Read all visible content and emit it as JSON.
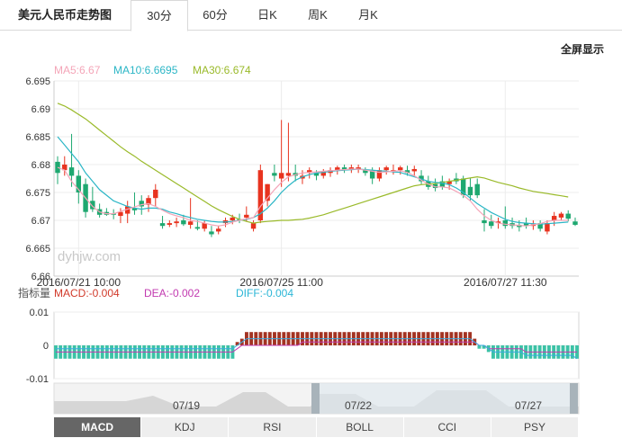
{
  "tabs": {
    "title": "美元人民币走势图",
    "items": [
      {
        "label": "30分",
        "active": true
      },
      {
        "label": "60分",
        "active": false
      },
      {
        "label": "日K",
        "active": false
      },
      {
        "label": "周K",
        "active": false
      },
      {
        "label": "月K",
        "active": false
      }
    ]
  },
  "fullscreen_label": "全屏显示",
  "watermark": "dyhjw.com",
  "ma_legend": [
    {
      "text": "MA5:6.67",
      "color": "#f4a5b8"
    },
    {
      "text": "MA10:6.6695",
      "color": "#2bb6c6"
    },
    {
      "text": "MA30:6.674",
      "color": "#9aba2a"
    }
  ],
  "macd_legend": {
    "prefix": "指标量",
    "items": [
      {
        "text": "MACD:-0.004",
        "color": "#d13a2a"
      },
      {
        "text": "DEA:-0.002",
        "color": "#c23ab0"
      },
      {
        "text": "DIFF:-0.004",
        "color": "#2bb6d6"
      }
    ]
  },
  "navigator_labels": [
    "07/19",
    "07/22",
    "07/27"
  ],
  "indicator_tabs": [
    {
      "label": "MACD",
      "active": true
    },
    {
      "label": "KDJ",
      "active": false
    },
    {
      "label": "RSI",
      "active": false
    },
    {
      "label": "BOLL",
      "active": false
    },
    {
      "label": "CCI",
      "active": false
    },
    {
      "label": "PSY",
      "active": false
    }
  ],
  "colors": {
    "up": "#e8331f",
    "down": "#1ea870",
    "macd_pos": "#a33322",
    "macd_neg": "#3cc2a6",
    "dea": "#c23ab0",
    "diff": "#3aa9e0"
  },
  "chart_data": [
    {
      "type": "candlestick",
      "title": "美元人民币走势图",
      "interval": "30分",
      "ylim": [
        6.66,
        6.695
      ],
      "yticks": [
        "6.695",
        "6.69",
        "6.685",
        "6.68",
        "6.675",
        "6.67",
        "6.665",
        "6.66"
      ],
      "xticks": [
        "2016/07/21 10:00",
        "2016/07/25 11:00",
        "2016/07/27 11:30"
      ],
      "grid": true,
      "legend_position": "top-left",
      "candles": [
        [
          6.6805,
          6.6815,
          6.6765,
          6.6785
        ],
        [
          6.679,
          6.6815,
          6.678,
          6.68
        ],
        [
          6.6795,
          6.6855,
          6.676,
          6.678
        ],
        [
          6.678,
          6.679,
          6.673,
          6.675
        ],
        [
          6.6765,
          6.6775,
          6.6705,
          6.6715
        ],
        [
          6.6735,
          6.676,
          6.6715,
          6.672
        ],
        [
          6.672,
          6.673,
          6.6705,
          6.671
        ],
        [
          6.6715,
          6.6722,
          6.6708,
          6.671
        ],
        [
          6.6712,
          6.672,
          6.6702,
          6.671
        ],
        [
          6.6708,
          6.6722,
          6.6695,
          6.6715
        ],
        [
          6.6712,
          6.6735,
          6.6695,
          6.6725
        ],
        [
          6.6722,
          6.675,
          6.671,
          6.6718
        ],
        [
          6.6735,
          6.6745,
          6.671,
          6.6725
        ],
        [
          6.6728,
          6.6745,
          6.6715,
          6.674
        ],
        [
          6.674,
          6.6765,
          6.6725,
          6.6755
        ],
        [
          6.6695,
          6.6708,
          6.6685,
          6.669
        ],
        [
          6.6692,
          6.67,
          6.6688,
          6.6695
        ],
        [
          6.6695,
          6.6705,
          6.6688,
          6.6698
        ],
        [
          6.67,
          6.671,
          6.669,
          6.6693
        ],
        [
          6.6692,
          6.674,
          6.6685,
          6.6698
        ],
        [
          6.6688,
          6.67,
          6.6682,
          6.6685
        ],
        [
          6.6685,
          6.67,
          6.668,
          6.6695
        ],
        [
          6.668,
          6.669,
          6.667,
          6.6675
        ],
        [
          6.668,
          6.669,
          6.6675,
          6.6685
        ],
        [
          6.6695,
          6.6705,
          6.6688,
          6.67
        ],
        [
          6.67,
          6.671,
          6.6693,
          6.6705
        ],
        [
          6.6702,
          6.6712,
          6.6695,
          6.67
        ],
        [
          6.6705,
          6.6725,
          6.6698,
          6.671
        ],
        [
          6.6685,
          6.67,
          6.668,
          6.6695
        ],
        [
          6.67,
          6.68,
          6.6695,
          6.679
        ],
        [
          6.6735,
          6.6765,
          6.6725,
          6.6765
        ],
        [
          6.6785,
          6.68,
          6.677,
          6.678
        ],
        [
          6.6775,
          6.688,
          6.676,
          6.6785
        ],
        [
          6.678,
          6.6875,
          6.677,
          6.6785
        ],
        [
          6.6785,
          6.68,
          6.677,
          6.678
        ],
        [
          6.6775,
          6.679,
          6.6765,
          6.678
        ],
        [
          6.6785,
          6.6795,
          6.6775,
          6.679
        ],
        [
          6.6785,
          6.679,
          6.6772,
          6.678
        ],
        [
          6.678,
          6.6792,
          6.6775,
          6.6788
        ],
        [
          6.6785,
          6.6795,
          6.6778,
          6.679
        ],
        [
          6.679,
          6.6798,
          6.6782,
          6.6795
        ],
        [
          6.6795,
          6.68,
          6.6785,
          6.679
        ],
        [
          6.6792,
          6.68,
          6.6785,
          6.6795
        ],
        [
          6.6792,
          6.68,
          6.6785,
          6.6795
        ],
        [
          6.679,
          6.6795,
          6.678,
          6.6785
        ],
        [
          6.679,
          6.6795,
          6.6765,
          6.6775
        ],
        [
          6.6775,
          6.6795,
          6.677,
          6.679
        ],
        [
          6.679,
          6.6798,
          6.6782,
          6.6795
        ],
        [
          6.679,
          6.68,
          6.6782,
          6.679
        ],
        [
          6.679,
          6.6798,
          6.6782,
          6.6795
        ],
        [
          6.679,
          6.6798,
          6.678,
          6.6785
        ],
        [
          6.6788,
          6.6798,
          6.6778,
          6.6792
        ],
        [
          6.678,
          6.679,
          6.6765,
          6.677
        ],
        [
          6.677,
          6.678,
          6.6755,
          6.676
        ],
        [
          6.6765,
          6.6775,
          6.6752,
          6.6758
        ],
        [
          6.677,
          6.678,
          6.6755,
          6.676
        ],
        [
          6.6765,
          6.6775,
          6.6755,
          6.677
        ],
        [
          6.6775,
          6.6785,
          6.6765,
          6.677
        ],
        [
          6.6775,
          6.678,
          6.674,
          6.6745
        ],
        [
          6.676,
          6.6775,
          6.6735,
          6.6745
        ],
        [
          6.6765,
          6.6775,
          6.674,
          6.6745
        ],
        [
          6.67,
          6.672,
          6.668,
          6.6695
        ],
        [
          6.6698,
          6.671,
          6.6685,
          6.669
        ],
        [
          6.6695,
          6.6705,
          6.6685,
          6.6698
        ],
        [
          6.67,
          6.6725,
          6.6685,
          6.669
        ],
        [
          6.6695,
          6.6705,
          6.6685,
          6.669
        ],
        [
          6.6692,
          6.67,
          6.668,
          6.6688
        ],
        [
          6.6695,
          6.6705,
          6.6685,
          6.669
        ],
        [
          6.669,
          6.67,
          6.6683,
          6.6693
        ],
        [
          6.6695,
          6.67,
          6.668,
          6.6685
        ],
        [
          6.668,
          6.67,
          6.6675,
          6.6695
        ],
        [
          6.67,
          6.6715,
          6.669,
          6.6708
        ],
        [
          6.6705,
          6.6715,
          6.67,
          6.6712
        ],
        [
          6.6712,
          6.6718,
          6.6698,
          6.6703
        ],
        [
          6.6698,
          6.6705,
          6.669,
          6.6692
        ]
      ],
      "ma5": [
        6.6795,
        6.679,
        6.677,
        6.6755,
        6.674,
        6.6725,
        6.6715,
        6.6712,
        6.6712,
        6.6716,
        6.672,
        6.6724,
        6.6728,
        6.673,
        6.6725,
        6.6718,
        6.6712,
        6.6708,
        6.6705,
        6.67,
        6.6698,
        6.6695,
        6.6692,
        6.669,
        6.6692,
        6.6697,
        6.67,
        6.6703,
        6.6705,
        6.6725,
        6.674,
        6.6755,
        6.6768,
        6.6778,
        6.6782,
        6.6785,
        6.6786,
        6.6787,
        6.6788,
        6.6789,
        6.679,
        6.6791,
        6.6792,
        6.6792,
        6.679,
        6.6788,
        6.6786,
        6.6787,
        6.6788,
        6.6789,
        6.6786,
        6.678,
        6.6772,
        6.6765,
        6.676,
        6.676,
        6.6758,
        6.6752,
        6.6745,
        6.6735,
        6.672,
        6.6708,
        6.67,
        6.6695,
        6.6693,
        6.6692,
        6.6691,
        6.669,
        6.6692,
        6.6694,
        6.6698,
        6.67,
        6.67,
        6.67
      ],
      "ma10": [
        6.685,
        6.6835,
        6.682,
        6.6805,
        6.6785,
        6.677,
        6.6755,
        6.6745,
        6.6735,
        6.673,
        6.6725,
        6.6722,
        6.672,
        6.6722,
        6.6722,
        6.672,
        6.6715,
        6.6712,
        6.6708,
        6.6705,
        6.6702,
        6.67,
        6.6698,
        6.6697,
        6.6697,
        6.6698,
        6.67,
        6.6702,
        6.6705,
        6.6712,
        6.6722,
        6.6735,
        6.675,
        6.6762,
        6.6772,
        6.6778,
        6.6782,
        6.6785,
        6.6786,
        6.6788,
        6.6789,
        6.679,
        6.6791,
        6.6792,
        6.6791,
        6.679,
        6.6789,
        6.6788,
        6.6787,
        6.6786,
        6.6782,
        6.6778,
        6.6774,
        6.677,
        6.6768,
        6.6767,
        6.6764,
        6.6758,
        6.675,
        6.674,
        6.673,
        6.6722,
        6.6714,
        6.6708,
        6.6702,
        6.6698,
        6.6696,
        6.6695,
        6.6694,
        6.6693,
        6.6694,
        6.6695,
        6.6696,
        6.6697
      ],
      "ma30": [
        6.691,
        6.6905,
        6.6898,
        6.689,
        6.6882,
        6.6872,
        6.6862,
        6.6852,
        6.6842,
        6.6832,
        6.6823,
        6.6815,
        6.6806,
        6.6798,
        6.679,
        6.6782,
        6.6774,
        6.6766,
        6.6758,
        6.675,
        6.6742,
        6.6734,
        6.6726,
        6.6719,
        6.6713,
        6.6707,
        6.6702,
        6.6698,
        6.6695,
        6.6697,
        6.6698,
        6.6699,
        6.67,
        6.67,
        6.6701,
        6.6702,
        6.6704,
        6.6707,
        6.671,
        6.6714,
        6.6718,
        6.6722,
        6.6726,
        6.673,
        6.6734,
        6.6738,
        6.6742,
        6.6746,
        6.675,
        6.6754,
        6.6758,
        6.6762,
        6.6764,
        6.6765,
        6.6766,
        6.6768,
        6.677,
        6.6772,
        6.6774,
        6.6776,
        6.6778,
        6.6776,
        6.6772,
        6.6768,
        6.6765,
        6.6762,
        6.6758,
        6.6755,
        6.6752,
        6.675,
        6.6748,
        6.6746,
        6.6744,
        6.6742
      ]
    },
    {
      "type": "bar",
      "title": "MACD",
      "ylim": [
        -0.01,
        0.01
      ],
      "yticks": [
        "0.01",
        "0",
        "-0.01"
      ],
      "macd": [
        -0.004,
        -0.004,
        -0.004,
        -0.004,
        -0.004,
        -0.004,
        -0.004,
        -0.004,
        -0.004,
        -0.004,
        -0.004,
        -0.004,
        -0.004,
        -0.004,
        -0.004,
        -0.004,
        -0.004,
        -0.004,
        -0.004,
        -0.004,
        -0.004,
        -0.004,
        -0.004,
        -0.004,
        -0.004,
        -0.004,
        -0.004,
        -0.004,
        -0.004,
        -0.004,
        -0.004,
        -0.004,
        -0.004,
        -0.004,
        -0.004,
        -0.004,
        -0.004,
        -0.004,
        -0.004,
        0.001,
        0.002,
        0.004,
        0.004,
        0.004,
        0.004,
        0.004,
        0.004,
        0.004,
        0.004,
        0.004,
        0.004,
        0.004,
        0.004,
        0.004,
        0.004,
        0.004,
        0.004,
        0.004,
        0.004,
        0.004,
        0.004,
        0.004,
        0.004,
        0.004,
        0.004,
        0.004,
        0.004,
        0.004,
        0.004,
        0.004,
        0.004,
        0.004,
        0.004,
        0.004,
        0.004,
        0.004,
        0.004,
        0.004,
        0.004,
        0.004,
        0.004,
        0.004,
        0.004,
        0.004,
        0.004,
        0.004,
        0.004,
        0.004,
        0.004,
        0.004,
        0.002,
        -0.001,
        -0.001,
        -0.002,
        -0.004,
        -0.004,
        -0.004,
        -0.004,
        -0.004,
        -0.004,
        -0.004,
        -0.004,
        -0.004,
        -0.004,
        -0.004,
        -0.004,
        -0.004,
        -0.004,
        -0.004,
        -0.004,
        -0.004,
        -0.004,
        -0.004
      ],
      "dea": [
        -0.002,
        -0.002,
        -0.002,
        -0.002,
        -0.002,
        -0.002,
        -0.002,
        -0.002,
        -0.002,
        -0.002,
        -0.002,
        -0.002,
        -0.002,
        -0.002,
        -0.002,
        -0.002,
        -0.002,
        -0.002,
        -0.002,
        -0.002,
        -0.002,
        -0.002,
        -0.002,
        -0.002,
        -0.002,
        -0.002,
        -0.002,
        -0.002,
        -0.002,
        -0.002,
        -0.002,
        -0.002,
        -0.002,
        -0.002,
        -0.002,
        -0.002,
        -0.002,
        -0.002,
        -0.002,
        -0.001,
        0,
        0,
        0,
        0,
        0,
        0,
        0,
        0,
        0,
        0,
        0,
        0,
        0,
        0.001,
        0.001,
        0.001,
        0.001,
        0.001,
        0.001,
        0.001,
        0.001,
        0.001,
        0.001,
        0.001,
        0.001,
        0.001,
        0.001,
        0.001,
        0.001,
        0.001,
        0.001,
        0.001,
        0.001,
        0.001,
        0.001,
        0.001,
        0.001,
        0.001,
        0.001,
        0.001,
        0.001,
        0.001,
        0.001,
        0.001,
        0.001,
        0.001,
        0.001,
        0.001,
        0.001,
        0.001,
        0.001,
        0,
        0,
        -0.001,
        -0.001,
        -0.001,
        -0.001,
        -0.001,
        -0.001,
        -0.001,
        -0.001,
        -0.002,
        -0.002,
        -0.002,
        -0.002,
        -0.002,
        -0.002,
        -0.002,
        -0.002,
        -0.002,
        -0.002,
        -0.002,
        -0.002
      ],
      "diff": [
        -0.001,
        -0.001,
        -0.001,
        -0.001,
        -0.001,
        -0.001,
        -0.001,
        -0.001,
        -0.001,
        -0.001,
        -0.001,
        -0.001,
        -0.001,
        -0.001,
        -0.001,
        -0.001,
        -0.001,
        -0.001,
        -0.001,
        -0.001,
        -0.001,
        -0.001,
        -0.001,
        -0.001,
        -0.001,
        -0.001,
        -0.001,
        -0.001,
        -0.001,
        -0.001,
        -0.001,
        -0.001,
        -0.001,
        -0.001,
        -0.001,
        -0.001,
        -0.001,
        -0.001,
        -0.001,
        0,
        0.001,
        0.002,
        0.002,
        0.002,
        0.002,
        0.002,
        0.002,
        0.002,
        0.002,
        0.002,
        0.002,
        0.002,
        0.002,
        0.002,
        0.002,
        0.002,
        0.002,
        0.002,
        0.002,
        0.002,
        0.002,
        0.002,
        0.002,
        0.002,
        0.002,
        0.002,
        0.002,
        0.002,
        0.002,
        0.002,
        0.002,
        0.002,
        0.002,
        0.002,
        0.002,
        0.002,
        0.002,
        0.002,
        0.002,
        0.002,
        0.002,
        0.002,
        0.002,
        0.002,
        0.002,
        0.002,
        0.002,
        0.002,
        0.002,
        0.002,
        0.001,
        0,
        0,
        -0.001,
        -0.002,
        -0.002,
        -0.002,
        -0.002,
        -0.002,
        -0.002,
        -0.002,
        -0.003,
        -0.003,
        -0.003,
        -0.003,
        -0.003,
        -0.003,
        -0.003,
        -0.003,
        -0.003,
        -0.003,
        -0.003,
        -0.004
      ]
    }
  ]
}
